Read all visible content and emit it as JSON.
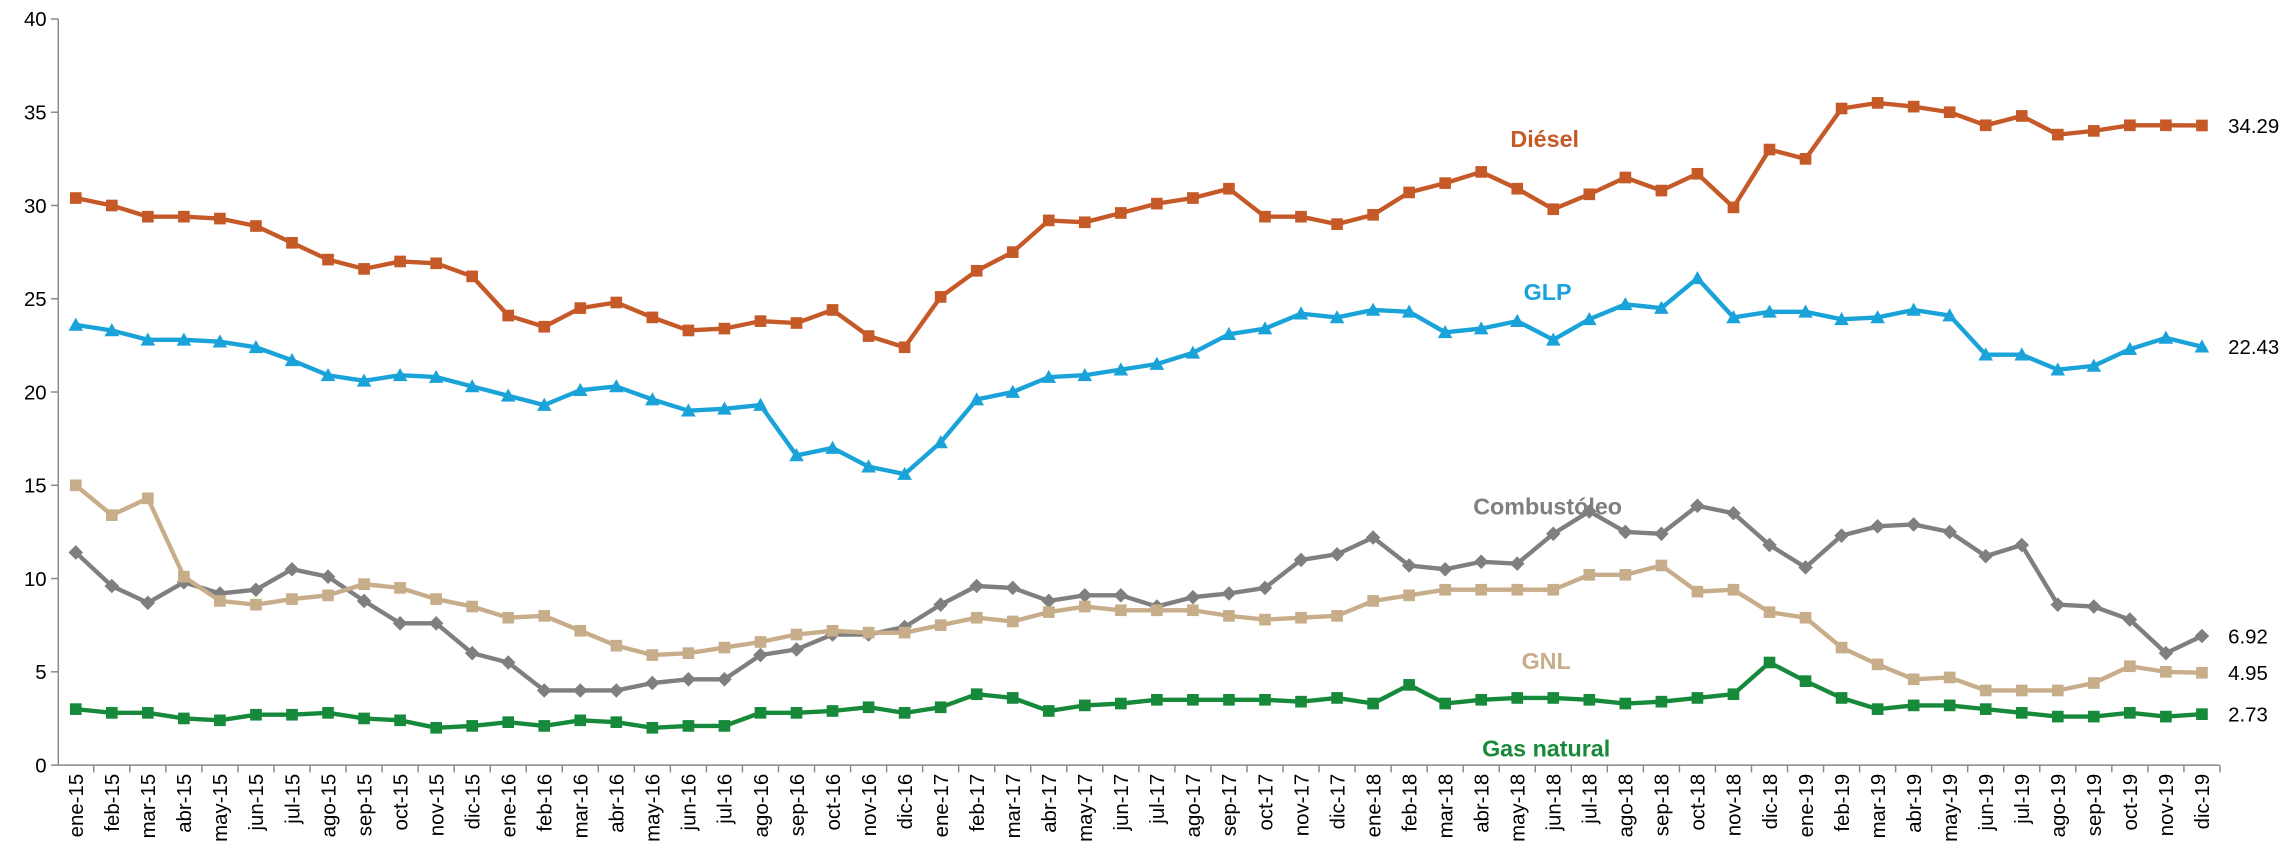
{
  "chart_data": {
    "type": "line",
    "categories": [
      "ene-15",
      "feb-15",
      "mar-15",
      "abr-15",
      "may-15",
      "jun-15",
      "jul-15",
      "ago-15",
      "sep-15",
      "oct-15",
      "nov-15",
      "dic-15",
      "ene-16",
      "feb-16",
      "mar-16",
      "abr-16",
      "may-16",
      "jun-16",
      "jul-16",
      "ago-16",
      "sep-16",
      "oct-16",
      "nov-16",
      "dic-16",
      "ene-17",
      "feb-17",
      "mar-17",
      "abr-17",
      "may-17",
      "jun-17",
      "jul-17",
      "ago-17",
      "sep-17",
      "oct-17",
      "nov-17",
      "dic-17",
      "ene-18",
      "feb-18",
      "mar-18",
      "abr-18",
      "may-18",
      "jun-18",
      "jul-18",
      "ago-18",
      "sep-18",
      "oct-18",
      "nov-18",
      "dic-18",
      "ene-19",
      "feb-19",
      "mar-19",
      "abr-19",
      "may-19",
      "jun-19",
      "jul-19",
      "ago-19",
      "sep-19",
      "oct-19",
      "nov-19",
      "dic-19"
    ],
    "ylim": [
      0,
      40
    ],
    "yticks": [
      0,
      5,
      10,
      15,
      20,
      25,
      30,
      35,
      40
    ],
    "series": [
      {
        "name": "Diésel",
        "color": "#c55a28",
        "marker": "square",
        "values": [
          30.4,
          30.0,
          29.4,
          29.4,
          29.3,
          28.9,
          28.0,
          27.1,
          26.6,
          27.0,
          26.9,
          26.2,
          24.1,
          23.5,
          24.5,
          24.8,
          24.0,
          23.3,
          23.4,
          23.8,
          23.7,
          24.4,
          23.0,
          22.4,
          25.1,
          26.5,
          27.5,
          29.2,
          29.1,
          29.6,
          30.1,
          30.4,
          30.9,
          29.4,
          29.4,
          29.0,
          29.5,
          30.7,
          31.2,
          31.8,
          30.9,
          29.8,
          30.6,
          31.5,
          30.8,
          31.7,
          29.9,
          33.0,
          32.5,
          35.2,
          35.5,
          35.3,
          35.0,
          34.3,
          34.8,
          33.8,
          34.0,
          34.3,
          34.3,
          34.29
        ]
      },
      {
        "name": "GLP",
        "color": "#1aa3d9",
        "marker": "triangle",
        "values": [
          23.6,
          23.3,
          22.8,
          22.8,
          22.7,
          22.4,
          21.7,
          20.9,
          20.6,
          20.9,
          20.8,
          20.3,
          19.8,
          19.3,
          20.1,
          20.3,
          19.6,
          19.0,
          19.1,
          19.3,
          16.6,
          17.0,
          16.0,
          15.6,
          17.3,
          19.6,
          20.0,
          20.8,
          20.9,
          21.2,
          21.5,
          22.1,
          23.1,
          23.4,
          24.2,
          24.0,
          24.4,
          24.3,
          23.2,
          23.4,
          23.8,
          22.8,
          23.9,
          24.7,
          24.5,
          26.1,
          24.0,
          24.3,
          24.3,
          23.9,
          24.0,
          24.4,
          24.1,
          22.0,
          22.0,
          21.2,
          21.4,
          22.3,
          22.9,
          22.43
        ]
      },
      {
        "name": "Combustóleo",
        "color": "#7f7f7f",
        "marker": "diamond",
        "values": [
          11.4,
          9.6,
          8.7,
          9.8,
          9.2,
          9.4,
          10.5,
          10.1,
          8.8,
          7.6,
          7.6,
          6.0,
          5.5,
          4.0,
          4.0,
          4.0,
          4.4,
          4.6,
          4.6,
          5.9,
          6.2,
          7.0,
          7.0,
          7.4,
          8.6,
          9.6,
          9.5,
          8.8,
          9.1,
          9.1,
          8.5,
          9.0,
          9.2,
          9.5,
          11.0,
          11.3,
          12.2,
          10.7,
          10.5,
          10.9,
          10.8,
          12.4,
          13.6,
          12.5,
          12.4,
          13.9,
          13.5,
          11.8,
          10.6,
          12.3,
          12.8,
          12.9,
          12.5,
          11.2,
          11.8,
          8.6,
          8.5,
          7.8,
          6.0,
          6.92
        ]
      },
      {
        "name": "GNL",
        "color": "#c8ad8a",
        "marker": "square",
        "values": [
          15.0,
          13.4,
          14.3,
          10.1,
          8.8,
          8.6,
          8.9,
          9.1,
          9.7,
          9.5,
          8.9,
          8.5,
          7.9,
          8.0,
          7.2,
          6.4,
          5.9,
          6.0,
          6.3,
          6.6,
          7.0,
          7.2,
          7.1,
          7.1,
          7.5,
          7.9,
          7.7,
          8.2,
          8.5,
          8.3,
          8.3,
          8.3,
          8.0,
          7.8,
          7.9,
          8.0,
          8.8,
          9.1,
          9.4,
          9.4,
          9.4,
          9.4,
          10.2,
          10.2,
          10.7,
          9.3,
          9.4,
          8.2,
          7.9,
          6.3,
          5.4,
          4.6,
          4.7,
          4.0,
          4.0,
          4.0,
          4.4,
          5.3,
          5.0,
          4.95
        ]
      },
      {
        "name": "Gas natural",
        "color": "#168a3a",
        "marker": "square",
        "values": [
          3.0,
          2.8,
          2.8,
          2.5,
          2.4,
          2.7,
          2.7,
          2.8,
          2.5,
          2.4,
          2.0,
          2.1,
          2.3,
          2.1,
          2.4,
          2.3,
          2.0,
          2.1,
          2.1,
          2.8,
          2.8,
          2.9,
          3.1,
          2.8,
          3.1,
          3.8,
          3.6,
          2.9,
          3.2,
          3.3,
          3.5,
          3.5,
          3.5,
          3.5,
          3.4,
          3.6,
          3.3,
          4.3,
          3.3,
          3.5,
          3.6,
          3.6,
          3.5,
          3.3,
          3.4,
          3.6,
          3.8,
          5.5,
          4.5,
          3.6,
          3.0,
          3.2,
          3.2,
          3.0,
          2.8,
          2.6,
          2.6,
          2.8,
          2.6,
          2.73
        ]
      }
    ]
  }
}
